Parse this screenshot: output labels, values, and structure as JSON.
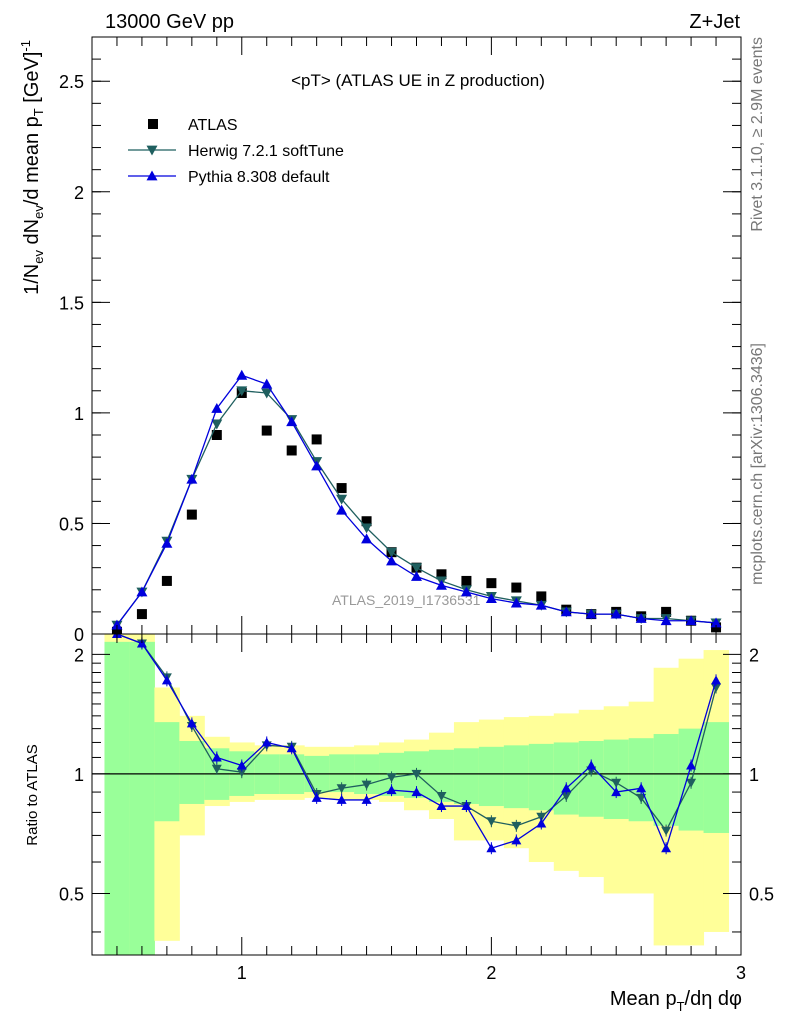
{
  "header": {
    "left": "13000 GeV pp",
    "right": "Z+Jet"
  },
  "side_labels": {
    "rivet": "Rivet 3.1.10, ≥ 2.9M events",
    "mcplots": "mcplots.cern.ch [arXiv:1306.3436]"
  },
  "watermark": "ATLAS_2019_I1736531",
  "colors": {
    "atlas": "#000000",
    "herwig": "#1f5f5f",
    "pythia": "#0000dd",
    "band_inner": "#99ff99",
    "band_outer": "#ffff99"
  },
  "chart_data": [
    {
      "type": "scatter",
      "title": "<pT> (ATLAS UE in Z production)",
      "ylabel": "1/N_ev dN_ev/d mean p_T [GeV]^-1",
      "xlim": [
        0.4,
        3.0
      ],
      "ylim": [
        0,
        2.7
      ],
      "yticks": [
        0,
        0.5,
        1,
        1.5,
        2,
        2.5
      ],
      "ytick_labels": [
        "0",
        "0.5",
        "1",
        "1.5",
        "2",
        "2.5"
      ],
      "legend": {
        "position": "top-left"
      },
      "x": [
        0.5,
        0.6,
        0.7,
        0.8,
        0.9,
        1.0,
        1.1,
        1.2,
        1.3,
        1.4,
        1.5,
        1.6,
        1.7,
        1.8,
        1.9,
        2.0,
        2.1,
        2.2,
        2.3,
        2.4,
        2.5,
        2.6,
        2.7,
        2.8,
        2.9
      ],
      "series": [
        {
          "name": "ATLAS",
          "marker": "square",
          "values": [
            0.01,
            0.09,
            0.24,
            0.54,
            0.9,
            1.09,
            0.92,
            0.83,
            0.88,
            0.66,
            0.51,
            0.37,
            0.3,
            0.27,
            0.24,
            0.23,
            0.21,
            0.17,
            0.11,
            0.09,
            0.1,
            0.08,
            0.1,
            0.06,
            0.03
          ]
        },
        {
          "name": "Herwig 7.2.1 softTune",
          "marker": "triangle-down",
          "values": [
            0.04,
            0.19,
            0.42,
            0.7,
            0.95,
            1.1,
            1.09,
            0.97,
            0.78,
            0.61,
            0.48,
            0.37,
            0.3,
            0.24,
            0.2,
            0.17,
            0.15,
            0.13,
            0.1,
            0.09,
            0.09,
            0.07,
            0.07,
            0.06,
            0.05
          ]
        },
        {
          "name": "Pythia 8.308 default",
          "marker": "triangle-up",
          "values": [
            0.04,
            0.19,
            0.41,
            0.7,
            1.02,
            1.17,
            1.13,
            0.96,
            0.76,
            0.56,
            0.43,
            0.33,
            0.26,
            0.22,
            0.19,
            0.16,
            0.14,
            0.13,
            0.1,
            0.09,
            0.09,
            0.07,
            0.06,
            0.06,
            0.05
          ]
        }
      ]
    },
    {
      "type": "line",
      "xlabel": "Mean p_T/dη dφ",
      "ylabel": "Ratio to ATLAS",
      "xlim": [
        0.4,
        3.0
      ],
      "ylim": [
        0.35,
        2.25
      ],
      "xticks": [
        1,
        2,
        3
      ],
      "xtick_labels": [
        "1",
        "2",
        "3"
      ],
      "yticks": [
        0.5,
        1,
        2
      ],
      "ytick_labels": [
        "0.5",
        "1",
        "2"
      ],
      "reference_line": 1,
      "band_edges": [
        0.45,
        0.55,
        0.65,
        0.75,
        0.85,
        0.95,
        1.05,
        1.15,
        1.25,
        1.35,
        1.45,
        1.55,
        1.65,
        1.75,
        1.85,
        1.95,
        2.05,
        2.15,
        2.25,
        2.35,
        2.45,
        2.55,
        2.65,
        2.75,
        2.85,
        2.95
      ],
      "band_inner": {
        "low": [
          0.35,
          0.35,
          0.76,
          0.84,
          0.86,
          0.88,
          0.89,
          0.89,
          0.9,
          0.9,
          0.89,
          0.88,
          0.87,
          0.85,
          0.84,
          0.83,
          0.82,
          0.81,
          0.79,
          0.78,
          0.77,
          0.76,
          0.74,
          0.72,
          0.71
        ],
        "high": [
          2.15,
          2.15,
          1.35,
          1.21,
          1.16,
          1.14,
          1.12,
          1.12,
          1.11,
          1.12,
          1.12,
          1.13,
          1.14,
          1.15,
          1.16,
          1.17,
          1.18,
          1.19,
          1.2,
          1.21,
          1.22,
          1.23,
          1.26,
          1.3,
          1.35
        ]
      },
      "band_outer": {
        "low": [
          0.35,
          0.35,
          0.38,
          0.7,
          0.83,
          0.85,
          0.86,
          0.86,
          0.87,
          0.86,
          0.86,
          0.85,
          0.81,
          0.77,
          0.68,
          0.68,
          0.65,
          0.6,
          0.57,
          0.55,
          0.5,
          0.5,
          0.37,
          0.37,
          0.4
        ],
        "high": [
          2.25,
          2.25,
          1.65,
          1.4,
          1.24,
          1.2,
          1.18,
          1.18,
          1.17,
          1.17,
          1.18,
          1.2,
          1.22,
          1.27,
          1.35,
          1.37,
          1.39,
          1.4,
          1.42,
          1.45,
          1.48,
          1.52,
          1.85,
          1.95,
          2.05
        ]
      },
      "series": [
        {
          "name": "Herwig 7.2.1 softTune",
          "marker": "triangle-down",
          "values": [
            2.6,
            2.13,
            1.75,
            1.32,
            1.03,
            1.01,
            1.18,
            1.17,
            0.89,
            0.92,
            0.94,
            0.98,
            1.0,
            0.88,
            0.83,
            0.76,
            0.74,
            0.78,
            0.88,
            1.02,
            0.95,
            0.87,
            0.72,
            0.95,
            1.65
          ]
        },
        {
          "name": "Pythia 8.308 default",
          "marker": "triangle-up",
          "values": [
            2.6,
            2.13,
            1.72,
            1.34,
            1.1,
            1.05,
            1.2,
            1.16,
            0.87,
            0.86,
            0.86,
            0.91,
            0.9,
            0.83,
            0.83,
            0.65,
            0.68,
            0.75,
            0.92,
            1.05,
            0.9,
            0.92,
            0.65,
            1.05,
            1.72
          ]
        }
      ]
    }
  ]
}
